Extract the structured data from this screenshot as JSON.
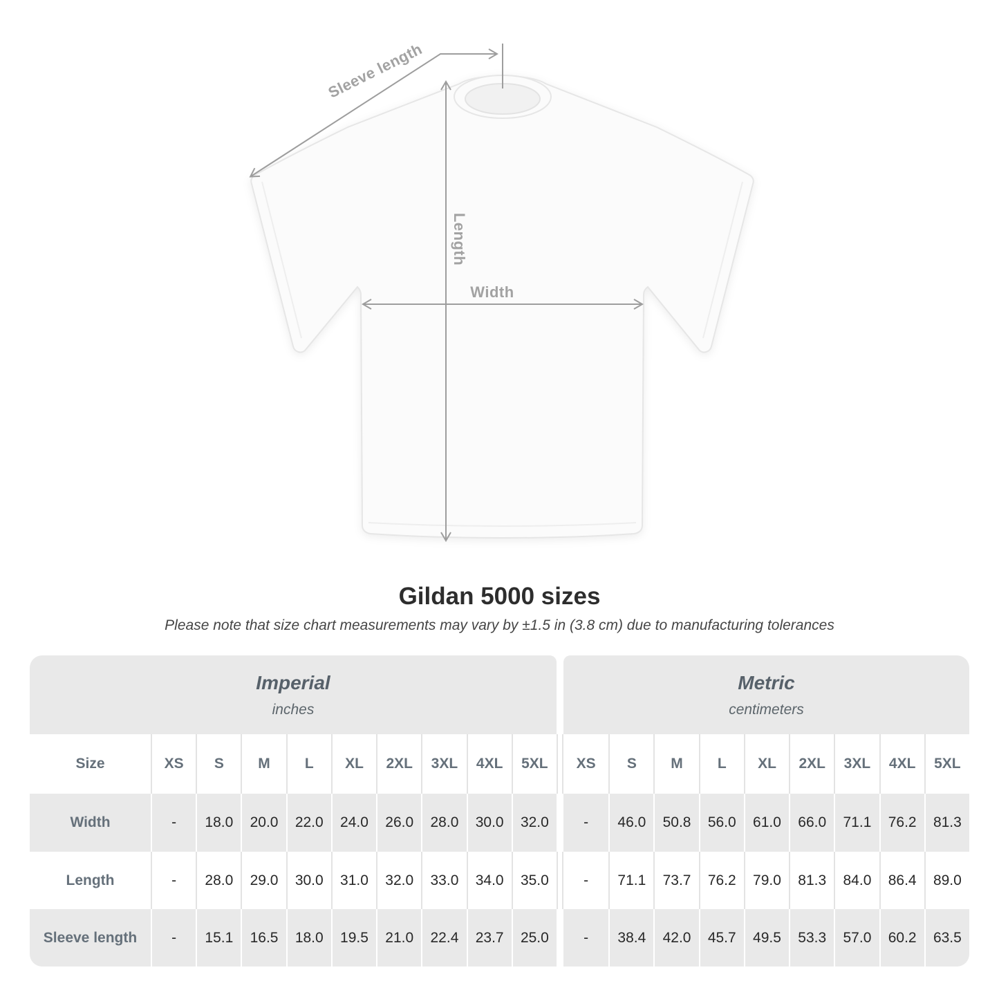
{
  "diagram": {
    "sleeve_length_label": "Sleeve length",
    "length_label": "Length",
    "width_label": "Width"
  },
  "heading": {
    "title": "Gildan 5000 sizes",
    "subtitle": "Please note that size chart measurements may vary by ±1.5 in (3.8 cm) due to manufacturing tolerances"
  },
  "table": {
    "corner_label": "Size",
    "groups": [
      {
        "label": "Imperial",
        "sublabel": "inches"
      },
      {
        "label": "Metric",
        "sublabel": "centimeters"
      }
    ],
    "sizes": [
      "XS",
      "S",
      "M",
      "L",
      "XL",
      "2XL",
      "3XL",
      "4XL",
      "5XL"
    ],
    "rows": [
      {
        "label": "Width",
        "imperial": [
          "-",
          "18.0",
          "20.0",
          "22.0",
          "24.0",
          "26.0",
          "28.0",
          "30.0",
          "32.0"
        ],
        "metric": [
          "-",
          "46.0",
          "50.8",
          "56.0",
          "61.0",
          "66.0",
          "71.1",
          "76.2",
          "81.3"
        ]
      },
      {
        "label": "Length",
        "imperial": [
          "-",
          "28.0",
          "29.0",
          "30.0",
          "31.0",
          "32.0",
          "33.0",
          "34.0",
          "35.0"
        ],
        "metric": [
          "-",
          "71.1",
          "73.7",
          "76.2",
          "79.0",
          "81.3",
          "84.0",
          "86.4",
          "89.0"
        ]
      },
      {
        "label": "Sleeve length",
        "imperial": [
          "-",
          "15.1",
          "16.5",
          "18.0",
          "19.5",
          "21.0",
          "22.4",
          "23.7",
          "25.0"
        ],
        "metric": [
          "-",
          "38.4",
          "42.0",
          "45.7",
          "49.5",
          "53.3",
          "57.0",
          "60.2",
          "63.5"
        ]
      }
    ]
  },
  "colors": {
    "table_block_gray": "#e9e9e9",
    "row_alt_gray": "#e9e9e9",
    "annotation_gray": "#9d9d9d",
    "header_text": "#65707a",
    "value_text": "#282828",
    "title_text": "#2d2d2d"
  }
}
